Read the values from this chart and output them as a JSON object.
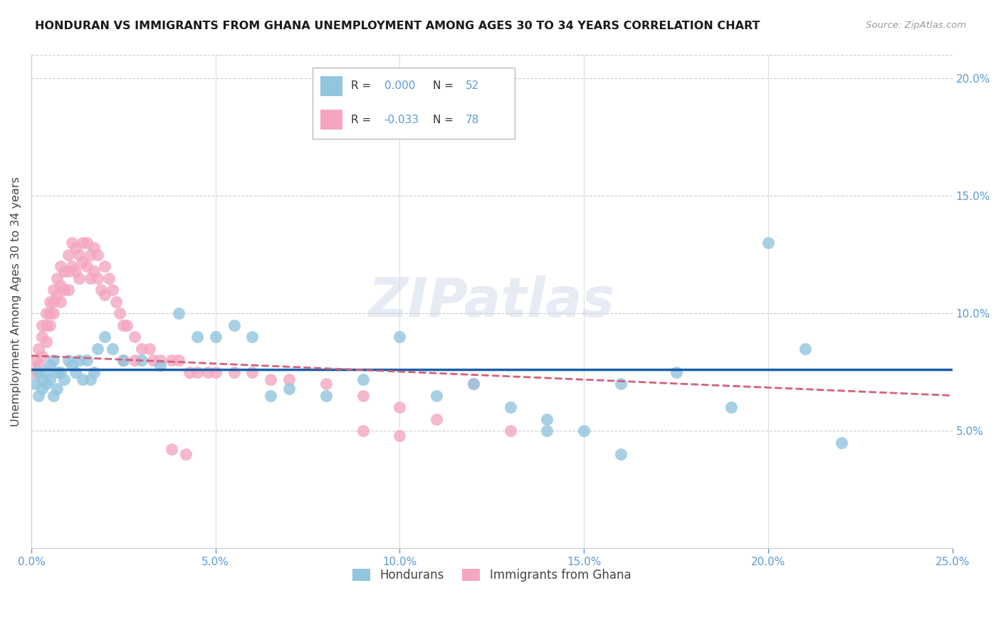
{
  "title": "HONDURAN VS IMMIGRANTS FROM GHANA UNEMPLOYMENT AMONG AGES 30 TO 34 YEARS CORRELATION CHART",
  "source": "Source: ZipAtlas.com",
  "ylabel": "Unemployment Among Ages 30 to 34 years",
  "xlim": [
    0.0,
    0.25
  ],
  "ylim": [
    0.0,
    0.21
  ],
  "xticks": [
    0.0,
    0.05,
    0.1,
    0.15,
    0.2,
    0.25
  ],
  "yticks_right": [
    0.05,
    0.1,
    0.15,
    0.2
  ],
  "ytick_labels_right": [
    "5.0%",
    "10.0%",
    "15.0%",
    "20.0%"
  ],
  "xtick_labels": [
    "0.0%",
    "5.0%",
    "10.0%",
    "15.0%",
    "20.0%",
    "25.0%"
  ],
  "hondurans_R": "0.000",
  "hondurans_N": 52,
  "ghana_R": "-0.033",
  "ghana_N": 78,
  "blue_color": "#92c5de",
  "pink_color": "#f4a6c0",
  "trendline_blue": "#1a5fa8",
  "trendline_pink": "#d4607a",
  "legend_blue_label": "Hondurans",
  "legend_pink_label": "Immigrants from Ghana",
  "watermark": "ZIPatlas",
  "accent_color": "#5b9bd5",
  "hondurans_x": [
    0.001,
    0.002,
    0.002,
    0.003,
    0.003,
    0.004,
    0.004,
    0.005,
    0.005,
    0.006,
    0.006,
    0.007,
    0.007,
    0.008,
    0.009,
    0.01,
    0.011,
    0.012,
    0.013,
    0.014,
    0.015,
    0.016,
    0.017,
    0.018,
    0.02,
    0.022,
    0.025,
    0.03,
    0.035,
    0.04,
    0.045,
    0.05,
    0.055,
    0.06,
    0.065,
    0.07,
    0.08,
    0.09,
    0.1,
    0.11,
    0.12,
    0.13,
    0.14,
    0.15,
    0.16,
    0.175,
    0.19,
    0.2,
    0.21,
    0.22,
    0.14,
    0.16
  ],
  "hondurans_y": [
    0.07,
    0.075,
    0.065,
    0.072,
    0.068,
    0.075,
    0.07,
    0.072,
    0.078,
    0.08,
    0.065,
    0.075,
    0.068,
    0.075,
    0.072,
    0.08,
    0.078,
    0.075,
    0.08,
    0.072,
    0.08,
    0.072,
    0.075,
    0.085,
    0.09,
    0.085,
    0.08,
    0.08,
    0.078,
    0.1,
    0.09,
    0.09,
    0.095,
    0.09,
    0.065,
    0.068,
    0.065,
    0.072,
    0.09,
    0.065,
    0.07,
    0.06,
    0.055,
    0.05,
    0.07,
    0.075,
    0.06,
    0.13,
    0.085,
    0.045,
    0.05,
    0.04
  ],
  "ghana_x": [
    0.001,
    0.001,
    0.002,
    0.002,
    0.003,
    0.003,
    0.003,
    0.004,
    0.004,
    0.004,
    0.005,
    0.005,
    0.005,
    0.006,
    0.006,
    0.006,
    0.007,
    0.007,
    0.008,
    0.008,
    0.008,
    0.009,
    0.009,
    0.01,
    0.01,
    0.01,
    0.011,
    0.011,
    0.012,
    0.012,
    0.013,
    0.013,
    0.014,
    0.014,
    0.015,
    0.015,
    0.016,
    0.016,
    0.017,
    0.017,
    0.018,
    0.018,
    0.019,
    0.02,
    0.02,
    0.021,
    0.022,
    0.023,
    0.024,
    0.025,
    0.026,
    0.028,
    0.03,
    0.032,
    0.035,
    0.038,
    0.04,
    0.043,
    0.045,
    0.048,
    0.05,
    0.055,
    0.06,
    0.065,
    0.07,
    0.08,
    0.09,
    0.1,
    0.11,
    0.12,
    0.13,
    0.025,
    0.028,
    0.033,
    0.038,
    0.042,
    0.09,
    0.1
  ],
  "ghana_y": [
    0.08,
    0.075,
    0.085,
    0.078,
    0.09,
    0.095,
    0.082,
    0.1,
    0.095,
    0.088,
    0.105,
    0.1,
    0.095,
    0.11,
    0.105,
    0.1,
    0.115,
    0.108,
    0.12,
    0.112,
    0.105,
    0.118,
    0.11,
    0.125,
    0.118,
    0.11,
    0.13,
    0.12,
    0.128,
    0.118,
    0.125,
    0.115,
    0.13,
    0.122,
    0.13,
    0.12,
    0.125,
    0.115,
    0.128,
    0.118,
    0.125,
    0.115,
    0.11,
    0.12,
    0.108,
    0.115,
    0.11,
    0.105,
    0.1,
    0.095,
    0.095,
    0.09,
    0.085,
    0.085,
    0.08,
    0.08,
    0.08,
    0.075,
    0.075,
    0.075,
    0.075,
    0.075,
    0.075,
    0.072,
    0.072,
    0.07,
    0.065,
    0.06,
    0.055,
    0.07,
    0.05,
    0.08,
    0.08,
    0.08,
    0.042,
    0.04,
    0.05,
    0.048
  ],
  "trendline_blue_start": 0.076,
  "trendline_blue_end": 0.076,
  "trendline_pink_start": 0.082,
  "trendline_pink_end": 0.065
}
